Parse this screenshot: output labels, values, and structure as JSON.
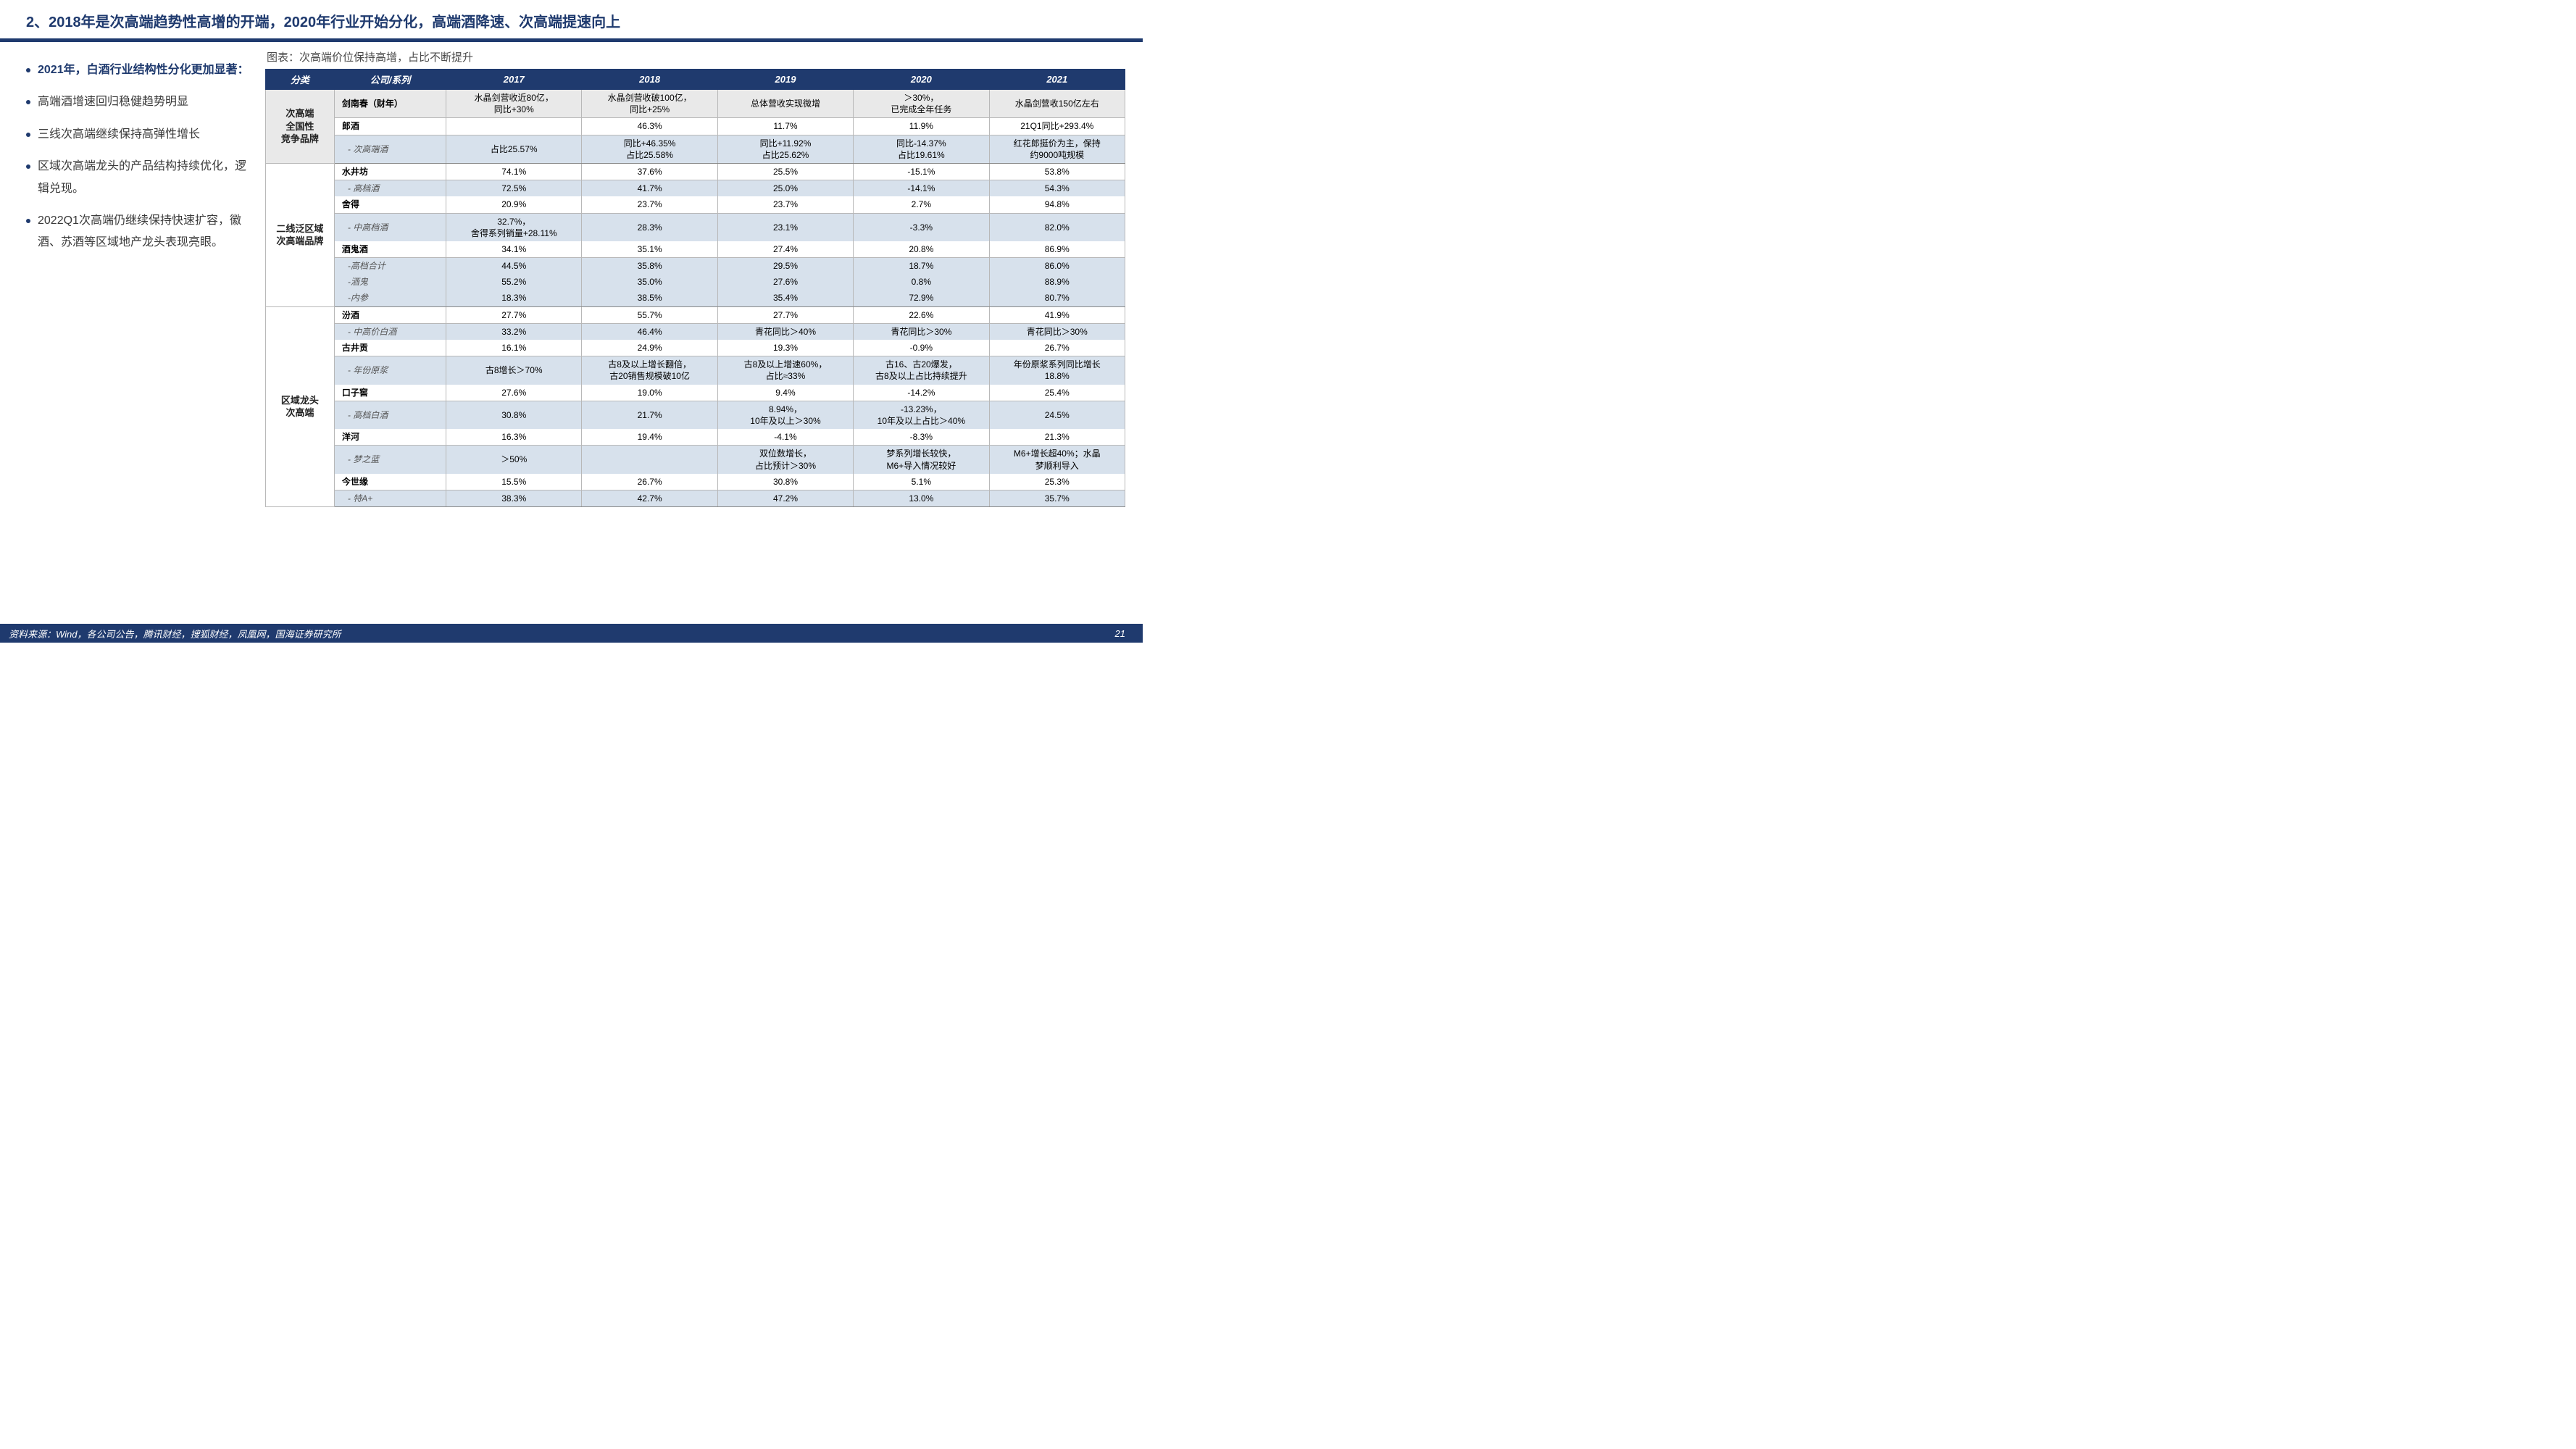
{
  "colors": {
    "brand_navy": "#1f3a6e",
    "tint_blue": "#d7e1ec",
    "tint_grey": "#e9e9e9",
    "white": "#ffffff",
    "text_dark": "#222222"
  },
  "title": "2、2018年是次高端趋势性高增的开端，2020年行业开始分化，高端酒降速、次高端提速向上",
  "bullets": [
    {
      "text": "2021年，白酒行业结构性分化更加显著：",
      "primary": true
    },
    {
      "text": "高端酒增速回归稳健趋势明显",
      "primary": false
    },
    {
      "text": "三线次高端继续保持高弹性增长",
      "primary": false
    },
    {
      "text": "区域次高端龙头的产品结构持续优化，逻辑兑现。",
      "primary": false
    },
    {
      "text": "2022Q1次高端仍继续保持快速扩容，徽酒、苏酒等区域地产龙头表现亮眼。",
      "primary": false
    }
  ],
  "chart_caption": "图表：次高端价位保持高增，占比不断提升",
  "table": {
    "columns": [
      "分类",
      "公司/系列",
      "2017",
      "2018",
      "2019",
      "2020",
      "2021"
    ],
    "groups": [
      {
        "category": "次高端\n全国性\n竞争品牌",
        "rows": [
          {
            "type": "main",
            "name": "剑南春（财年）",
            "tint": "alt",
            "cells": [
              "水晶剑营收近80亿，\n同比+30%",
              "水晶剑营收破100亿，\n同比+25%",
              "总体营收实现微增",
              "＞30%，\n已完成全年任务",
              "水晶剑营收150亿左右"
            ]
          },
          {
            "type": "main",
            "name": "郎酒",
            "cells": [
              "",
              "46.3%",
              "11.7%",
              "11.9%",
              "21Q1同比+293.4%"
            ]
          },
          {
            "type": "sub",
            "name": "- 次高端酒",
            "tint": "blue",
            "group_last": true,
            "cells": [
              "占比25.57%",
              "同比+46.35%\n占比25.58%",
              "同比+11.92%\n占比25.62%",
              "同比-14.37%\n占比19.61%",
              "红花郎挺价为主，保持\n约9000吨规模"
            ]
          }
        ]
      },
      {
        "category": "二线泛区域\n次高端品牌",
        "rows": [
          {
            "type": "main",
            "name": "水井坊",
            "cells": [
              "74.1%",
              "37.6%",
              "25.5%",
              "-15.1%",
              "53.8%"
            ]
          },
          {
            "type": "sub",
            "name": "- 高档酒",
            "tint": "blue",
            "cells": [
              "72.5%",
              "41.7%",
              "25.0%",
              "-14.1%",
              "54.3%"
            ]
          },
          {
            "type": "main",
            "name": "舍得",
            "cells": [
              "20.9%",
              "23.7%",
              "23.7%",
              "2.7%",
              "94.8%"
            ]
          },
          {
            "type": "sub",
            "name": "- 中高档酒",
            "tint": "blue",
            "cells": [
              "32.7%，\n舍得系列销量+28.11%",
              "28.3%",
              "23.1%",
              "-3.3%",
              "82.0%"
            ]
          },
          {
            "type": "main",
            "name": "酒鬼酒",
            "cells": [
              "34.1%",
              "35.1%",
              "27.4%",
              "20.8%",
              "86.9%"
            ]
          },
          {
            "type": "sub",
            "name": "-高档合计",
            "tint": "blue",
            "cells": [
              "44.5%",
              "35.8%",
              "29.5%",
              "18.7%",
              "86.0%"
            ]
          },
          {
            "type": "sub",
            "name": "-酒鬼",
            "tint": "blue",
            "cells": [
              "55.2%",
              "35.0%",
              "27.6%",
              "0.8%",
              "88.9%"
            ]
          },
          {
            "type": "sub",
            "name": "-内参",
            "tint": "blue",
            "group_last": true,
            "cells": [
              "18.3%",
              "38.5%",
              "35.4%",
              "72.9%",
              "80.7%"
            ]
          }
        ]
      },
      {
        "category": "区域龙头\n次高端",
        "rows": [
          {
            "type": "main",
            "name": "汾酒",
            "cells": [
              "27.7%",
              "55.7%",
              "27.7%",
              "22.6%",
              "41.9%"
            ]
          },
          {
            "type": "sub",
            "name": "- 中高价白酒",
            "tint": "blue",
            "cells": [
              "33.2%",
              "46.4%",
              "青花同比＞40%",
              "青花同比＞30%",
              "青花同比＞30%"
            ]
          },
          {
            "type": "main",
            "name": "古井贡",
            "cells": [
              "16.1%",
              "24.9%",
              "19.3%",
              "-0.9%",
              "26.7%"
            ]
          },
          {
            "type": "sub",
            "name": "- 年份原浆",
            "tint": "blue",
            "cells": [
              "古8增长＞70%",
              "古8及以上增长翻倍，\n古20销售规模破10亿",
              "古8及以上增速60%，\n占比≈33%",
              "古16、古20爆发，\n古8及以上占比持续提升",
              "年份原浆系列同比增长\n18.8%"
            ]
          },
          {
            "type": "main",
            "name": "口子窖",
            "cells": [
              "27.6%",
              "19.0%",
              "9.4%",
              "-14.2%",
              "25.4%"
            ]
          },
          {
            "type": "sub",
            "name": "- 高档白酒",
            "tint": "blue",
            "cells": [
              "30.8%",
              "21.7%",
              "8.94%，\n10年及以上＞30%",
              "-13.23%，\n10年及以上占比＞40%",
              "24.5%"
            ]
          },
          {
            "type": "main",
            "name": "洋河",
            "cells": [
              "16.3%",
              "19.4%",
              "-4.1%",
              "-8.3%",
              "21.3%"
            ]
          },
          {
            "type": "sub",
            "name": "- 梦之蓝",
            "tint": "blue",
            "cells": [
              "＞50%",
              "",
              "双位数增长，\n占比预计＞30%",
              "梦系列增长较快，\nM6+导入情况较好",
              "M6+增长超40%；水晶\n梦顺利导入"
            ]
          },
          {
            "type": "main",
            "name": "今世缘",
            "cells": [
              "15.5%",
              "26.7%",
              "30.8%",
              "5.1%",
              "25.3%"
            ]
          },
          {
            "type": "sub",
            "name": "- 特A+",
            "tint": "blue",
            "group_last": true,
            "cells": [
              "38.3%",
              "42.7%",
              "47.2%",
              "13.0%",
              "35.7%"
            ]
          }
        ]
      }
    ]
  },
  "footer_source": "资料来源：Wind，各公司公告，腾讯财经，搜狐财经，凤凰网，国海证券研究所",
  "page_number": "21"
}
